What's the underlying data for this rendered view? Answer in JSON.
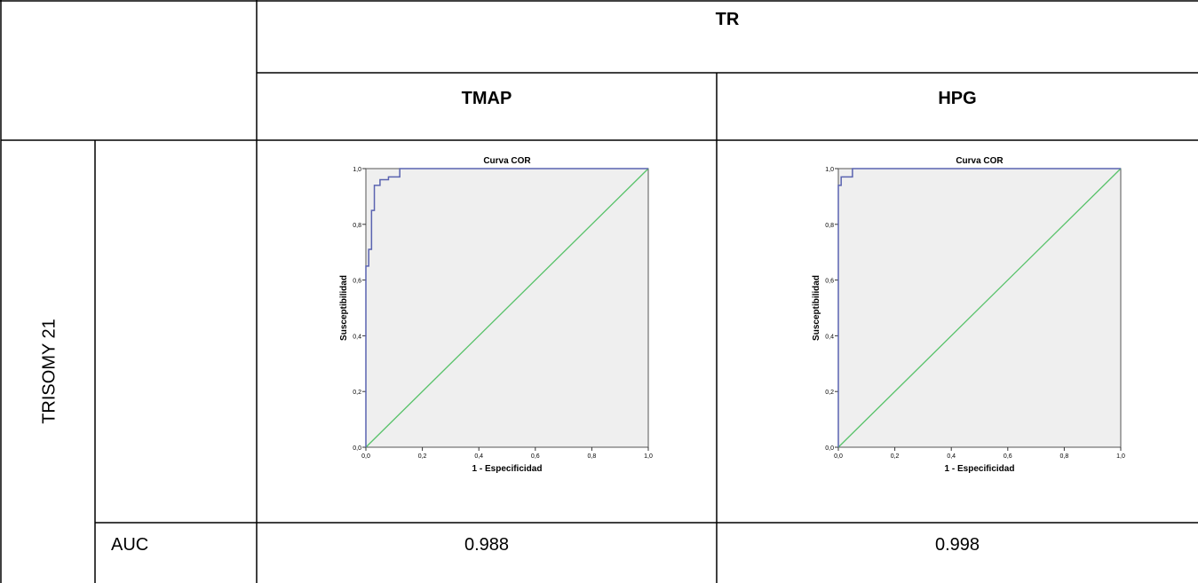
{
  "table": {
    "group_header": "TR",
    "col_headers": [
      "TMAP",
      "HPG"
    ],
    "row_label": "TRISOMY 21",
    "auc_label": "AUC",
    "auc_values": [
      "0.988",
      "0.998"
    ]
  },
  "colors": {
    "roc_curve": "#5a63b0",
    "reference_line": "#58c26a",
    "plot_bg": "#efefef",
    "grid_border": "#000000"
  },
  "chart_data": [
    {
      "type": "line",
      "title": "Curva COR",
      "xlabel": "1 - Especificidad",
      "ylabel": "Susceptibilidad",
      "xlim": [
        0,
        1
      ],
      "ylim": [
        0,
        1
      ],
      "xticks": [
        "0,0",
        "0,2",
        "0,4",
        "0,6",
        "0,8",
        "1,0"
      ],
      "yticks": [
        "0,0",
        "0,2",
        "0,4",
        "0,6",
        "0,8",
        "1,0"
      ],
      "series": [
        {
          "x": [
            0,
            0,
            0.01,
            0.01,
            0.02,
            0.02,
            0.03,
            0.03,
            0.05,
            0.05,
            0.08,
            0.08,
            0.12,
            0.12,
            1.0
          ],
          "y": [
            0,
            0.65,
            0.65,
            0.71,
            0.71,
            0.85,
            0.85,
            0.94,
            0.94,
            0.96,
            0.96,
            0.97,
            0.97,
            1.0,
            1.0
          ]
        },
        {
          "x": [
            0,
            1
          ],
          "y": [
            0,
            1
          ]
        }
      ],
      "legend": "none",
      "grid": false
    },
    {
      "type": "line",
      "title": "Curva COR",
      "xlabel": "1 - Especificidad",
      "ylabel": "Susceptibilidad",
      "xlim": [
        0,
        1
      ],
      "ylim": [
        0,
        1
      ],
      "xticks": [
        "0,0",
        "0,2",
        "0,4",
        "0,6",
        "0,8",
        "1,0"
      ],
      "yticks": [
        "0,0",
        "0,2",
        "0,4",
        "0,6",
        "0,8",
        "1,0"
      ],
      "series": [
        {
          "x": [
            0,
            0,
            0.01,
            0.01,
            0.02,
            0.02,
            0.05,
            0.05,
            1.0
          ],
          "y": [
            0,
            0.94,
            0.94,
            0.97,
            0.97,
            0.97,
            0.97,
            1.0,
            1.0
          ]
        },
        {
          "x": [
            0,
            1
          ],
          "y": [
            0,
            1
          ]
        }
      ],
      "legend": "none",
      "grid": false
    }
  ]
}
